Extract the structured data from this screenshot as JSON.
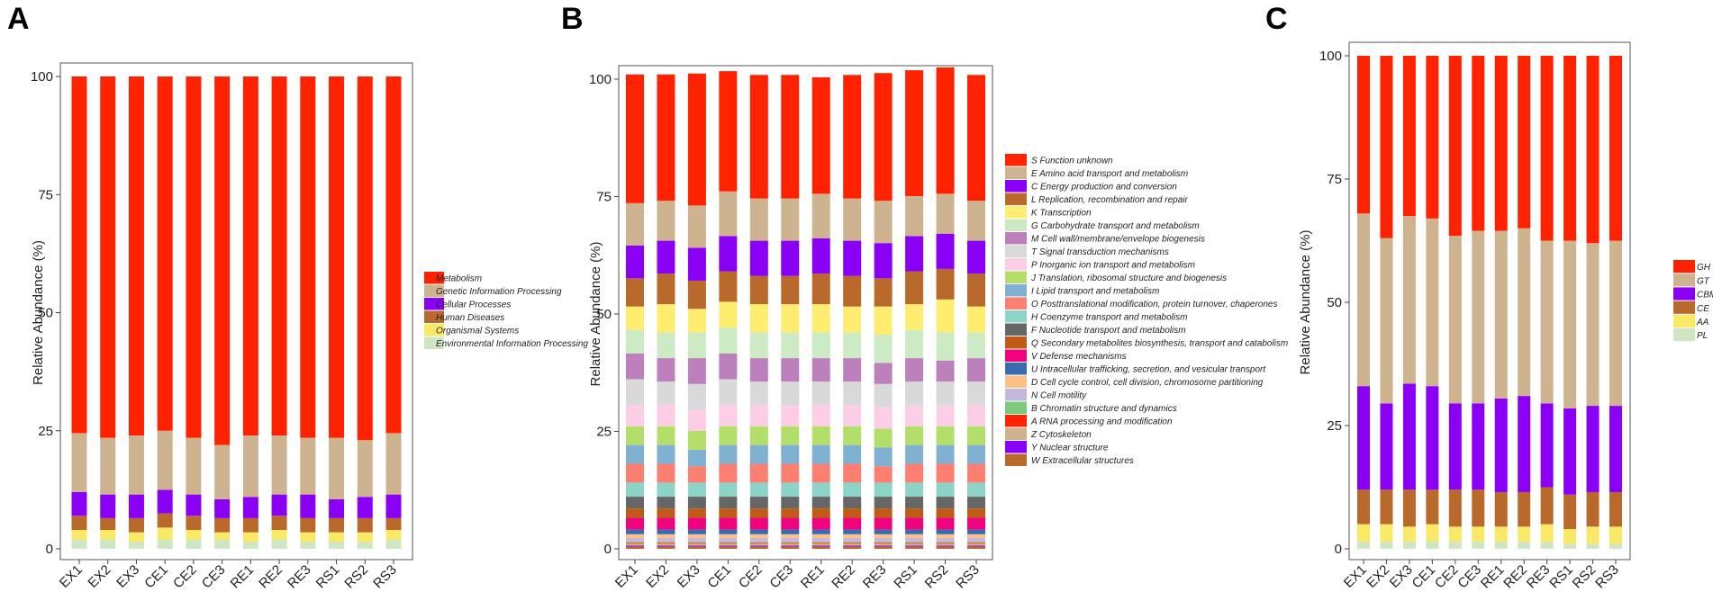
{
  "chart_data": [
    {
      "panel": "A",
      "type": "bar",
      "stacked": true,
      "title": "",
      "xlabel": "",
      "ylabel": "Relative Abundance (%)",
      "ylim": [
        0,
        100
      ],
      "yticks": [
        "0",
        "25",
        "50",
        "75",
        "100"
      ],
      "categories": [
        "EX1",
        "EX2",
        "EX3",
        "CE1",
        "CE2",
        "CE3",
        "RE1",
        "RE2",
        "RE3",
        "RS1",
        "RS2",
        "RS3"
      ],
      "legend_position": "right",
      "series": [
        {
          "name": "Environmental Information Processing",
          "color": "#cfe6c3",
          "values": [
            2,
            2,
            1.5,
            2,
            2,
            2,
            1.5,
            2,
            1.5,
            1.5,
            1.5,
            2
          ]
        },
        {
          "name": "Organismal Systems",
          "color": "#f9e967",
          "values": [
            2,
            2,
            2,
            2.5,
            2,
            1.5,
            2,
            2,
            2,
            2,
            2,
            2
          ]
        },
        {
          "name": "Human Diseases",
          "color": "#b8692b",
          "values": [
            3,
            2.5,
            3,
            3,
            3,
            3,
            3,
            3,
            3,
            3,
            3,
            2.5
          ]
        },
        {
          "name": "Cellular Processes",
          "color": "#8a00f5",
          "values": [
            5,
            5,
            5,
            5,
            4.5,
            4,
            4.5,
            4.5,
            5,
            4,
            4.5,
            5
          ]
        },
        {
          "name": "Genetic Information Processing",
          "color": "#cdb38f",
          "values": [
            12.5,
            12,
            12.5,
            12.5,
            12,
            11.5,
            13,
            12.5,
            12,
            13,
            12,
            13
          ]
        },
        {
          "name": "Metabolism",
          "color": "#ff2200",
          "values": [
            75.5,
            76.5,
            76,
            75,
            76.5,
            78,
            76,
            76,
            76.5,
            76.5,
            77,
            75.5
          ]
        }
      ]
    },
    {
      "panel": "B",
      "type": "bar",
      "stacked": true,
      "title": "",
      "xlabel": "",
      "ylabel": "Relative Abundance (%)",
      "ylim": [
        0,
        100
      ],
      "yticks": [
        "0",
        "25",
        "50",
        "75",
        "100"
      ],
      "categories": [
        "EX1",
        "EX2",
        "EX3",
        "CE1",
        "CE2",
        "CE3",
        "RE1",
        "RE2",
        "RE3",
        "RS1",
        "RS2",
        "RS3"
      ],
      "legend_position": "right",
      "series": [
        {
          "name": "W Extracellular structures",
          "color": "#b8692b",
          "values": [
            0.5,
            0.5,
            0.5,
            0.5,
            0.5,
            0.5,
            0.5,
            0.5,
            0.5,
            0.5,
            0.5,
            0.5
          ]
        },
        {
          "name": "Y Nuclear structure",
          "color": "#8a00f5",
          "values": [
            0.2,
            0.2,
            0.2,
            0.2,
            0.2,
            0.2,
            0.2,
            0.2,
            0.2,
            0.2,
            0.2,
            0.2
          ]
        },
        {
          "name": "Z Cytoskeleton",
          "color": "#cdb38f",
          "values": [
            0.4,
            0.4,
            0.4,
            0.4,
            0.4,
            0.4,
            0.4,
            0.4,
            0.4,
            0.4,
            0.4,
            0.4
          ]
        },
        {
          "name": "A RNA processing and modification",
          "color": "#ff2200",
          "values": [
            0.2,
            0.2,
            0.2,
            0.2,
            0.2,
            0.2,
            0.2,
            0.2,
            0.2,
            0.2,
            0.2,
            0.2
          ]
        },
        {
          "name": "B Chromatin structure and dynamics",
          "color": "#7fc97f",
          "values": [
            0.2,
            0.2,
            0.2,
            0.2,
            0.2,
            0.2,
            0.2,
            0.2,
            0.2,
            0.2,
            0.2,
            0.2
          ]
        },
        {
          "name": "N Cell motility",
          "color": "#c6b8dc",
          "values": [
            0.8,
            0.8,
            0.8,
            0.8,
            0.8,
            0.8,
            0.8,
            0.8,
            0.8,
            0.8,
            0.8,
            0.8
          ]
        },
        {
          "name": "D Cell cycle control, cell division, chromosome partitioning",
          "color": "#fdc086",
          "values": [
            0.8,
            0.8,
            0.8,
            0.8,
            0.8,
            0.8,
            0.8,
            0.8,
            0.8,
            0.8,
            0.8,
            0.8
          ]
        },
        {
          "name": "U Intracellular trafficking, secretion, and vesicular transport",
          "color": "#386cb0",
          "values": [
            1,
            1,
            1,
            1,
            1,
            1,
            1,
            1,
            1,
            1,
            1,
            1
          ]
        },
        {
          "name": "V Defense mechanisms",
          "color": "#f0027f",
          "values": [
            2.5,
            2.5,
            2.5,
            2.5,
            2.5,
            2.5,
            2.5,
            2.5,
            2.5,
            2.5,
            2.5,
            2.5
          ]
        },
        {
          "name": "Q Secondary metabolites biosynthesis, transport and catabolism",
          "color": "#bf5b17",
          "values": [
            2,
            2,
            2,
            2,
            2,
            2,
            2,
            2,
            2,
            2,
            2,
            2
          ]
        },
        {
          "name": "F Nucleotide transport and metabolism",
          "color": "#666666",
          "values": [
            2.5,
            2.5,
            2.5,
            2.5,
            2.5,
            2.5,
            2.5,
            2.5,
            2.5,
            2.5,
            2.5,
            2.5
          ]
        },
        {
          "name": "H Coenzyme transport and metabolism",
          "color": "#8dd3c7",
          "values": [
            3,
            3,
            3,
            3,
            3,
            3,
            3,
            3,
            3,
            3,
            3,
            3
          ]
        },
        {
          "name": "O Posttranslational modification, protein turnover, chaperones",
          "color": "#fb8072",
          "values": [
            4,
            4,
            3.5,
            4,
            4,
            4,
            4,
            4,
            3.5,
            4,
            4,
            4
          ]
        },
        {
          "name": "I Lipid transport and metabolism",
          "color": "#80b1d3",
          "values": [
            4,
            4,
            3.5,
            4,
            4,
            4,
            4,
            4,
            4,
            4,
            4,
            4
          ]
        },
        {
          "name": "J Translation, ribosomal structure and biogenesis",
          "color": "#b3de69",
          "values": [
            4,
            4,
            4,
            4,
            4,
            4,
            4,
            4,
            4,
            4,
            4,
            4
          ]
        },
        {
          "name": "P Inorganic ion transport and metabolism",
          "color": "#fccde5",
          "values": [
            4.5,
            4.5,
            4.5,
            4.5,
            4.5,
            4.5,
            4.5,
            4.5,
            4.5,
            4.5,
            4.5,
            4.5
          ]
        },
        {
          "name": "T Signal transduction mechanisms",
          "color": "#d9d9d9",
          "values": [
            5.5,
            5,
            5.5,
            5.5,
            5,
            5,
            5,
            5,
            5,
            5,
            5,
            5
          ]
        },
        {
          "name": "M Cell wall/membrane/envelope biogenesis",
          "color": "#bc80bd",
          "values": [
            5.5,
            5,
            5.5,
            5.5,
            5,
            5,
            5,
            5,
            4.5,
            5,
            4.5,
            5
          ]
        },
        {
          "name": "G Carbohydrate transport and metabolism",
          "color": "#ccebc5",
          "values": [
            5,
            5.5,
            5.5,
            5.5,
            5.5,
            5.5,
            5.5,
            5.5,
            6,
            6,
            6,
            5.5
          ]
        },
        {
          "name": "K Transcription",
          "color": "#ffed6f",
          "values": [
            5,
            6,
            5,
            5.5,
            6,
            6,
            6,
            5.5,
            6,
            5.5,
            7,
            5.5
          ]
        },
        {
          "name": "L Replication, recombination and repair",
          "color": "#b8692b",
          "values": [
            6,
            6.5,
            6,
            6.5,
            6,
            6,
            6.5,
            6.5,
            6,
            7,
            6.5,
            7
          ]
        },
        {
          "name": "C Energy production and conversion",
          "color": "#8a00f5",
          "values": [
            7,
            7,
            7,
            7.5,
            7.5,
            7.5,
            7.5,
            7.5,
            7.5,
            7.5,
            7.5,
            7
          ]
        },
        {
          "name": "E Amino acid transport and metabolism",
          "color": "#cdb38f",
          "values": [
            9,
            8.5,
            9,
            9.5,
            9,
            9,
            9.5,
            9,
            9,
            8.5,
            8.5,
            8.5
          ]
        },
        {
          "name": "S Function unknown",
          "color": "#ff2200",
          "values": [
            27.4,
            26.9,
            28.1,
            25.6,
            26.3,
            26.3,
            24.8,
            26.3,
            27.2,
            26.8,
            26.9,
            26.8
          ]
        }
      ]
    },
    {
      "panel": "C",
      "type": "bar",
      "stacked": true,
      "title": "",
      "xlabel": "",
      "ylabel": "Relative Abundance (%)",
      "ylim": [
        0,
        100
      ],
      "yticks": [
        "0",
        "25",
        "50",
        "75",
        "100"
      ],
      "categories": [
        "EX1",
        "EX2",
        "EX3",
        "CE1",
        "CE2",
        "CE3",
        "RE1",
        "RE2",
        "RE3",
        "RS1",
        "RS2",
        "RS3"
      ],
      "legend_position": "right",
      "series": [
        {
          "name": "PL",
          "color": "#cfe6c3",
          "values": [
            1.5,
            1.5,
            1.5,
            1.5,
            1.5,
            1.5,
            1.5,
            1.5,
            1.5,
            1,
            1,
            1
          ]
        },
        {
          "name": "AA",
          "color": "#f9e967",
          "values": [
            3.5,
            3.5,
            3,
            3.5,
            3,
            3,
            3,
            3,
            3.5,
            3,
            3.5,
            3.5
          ]
        },
        {
          "name": "CE",
          "color": "#b8692b",
          "values": [
            7,
            7,
            7.5,
            7,
            7.5,
            7.5,
            7,
            7,
            7.5,
            7,
            7,
            7
          ]
        },
        {
          "name": "CBM",
          "color": "#8a00f5",
          "values": [
            21,
            17.5,
            21.5,
            21,
            17.5,
            17.5,
            19,
            19.5,
            17,
            17.5,
            17.5,
            17.5
          ]
        },
        {
          "name": "GT",
          "color": "#cdb38f",
          "values": [
            35,
            33.5,
            34,
            34,
            34,
            35,
            34,
            34,
            33,
            34,
            33,
            33.5
          ]
        },
        {
          "name": "GH",
          "color": "#ff2200",
          "values": [
            32,
            37,
            32.5,
            33,
            36.5,
            35.5,
            35.5,
            35,
            37.5,
            37.5,
            38,
            37.5
          ]
        }
      ]
    }
  ],
  "panels": {
    "A": {
      "letter": "A"
    },
    "B": {
      "letter": "B"
    },
    "C": {
      "letter": "C"
    }
  }
}
